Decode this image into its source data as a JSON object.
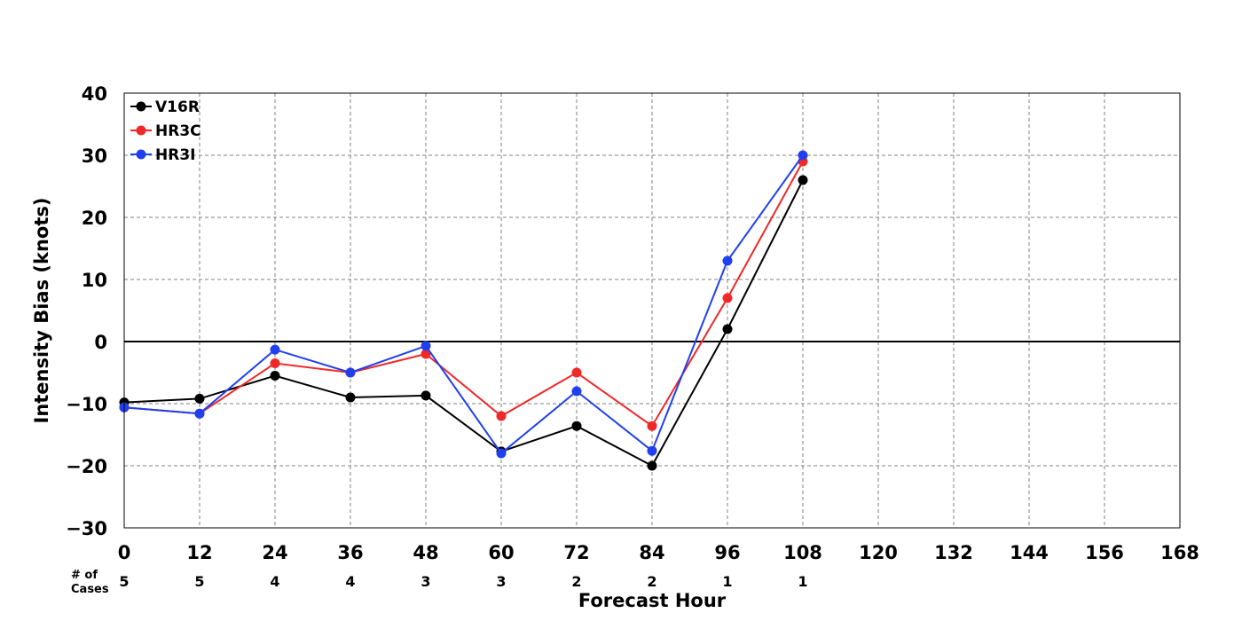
{
  "chart_data": {
    "type": "line",
    "xlabel": "Forecast Hour",
    "ylabel": "Intensity Bias (knots)",
    "xlim": [
      0,
      168
    ],
    "ylim": [
      -30,
      40
    ],
    "xticks": [
      0,
      12,
      24,
      36,
      48,
      60,
      72,
      84,
      96,
      108,
      120,
      132,
      144,
      156,
      168
    ],
    "yticks": [
      -30,
      -20,
      -10,
      0,
      10,
      20,
      30,
      40
    ],
    "grid": true,
    "legend_position": "top-left",
    "cases_label": [
      "# of",
      "Cases"
    ],
    "cases": [
      {
        "x": 0,
        "count": "5"
      },
      {
        "x": 12,
        "count": "5"
      },
      {
        "x": 24,
        "count": "4"
      },
      {
        "x": 36,
        "count": "4"
      },
      {
        "x": 48,
        "count": "3"
      },
      {
        "x": 60,
        "count": "3"
      },
      {
        "x": 72,
        "count": "2"
      },
      {
        "x": 84,
        "count": "2"
      },
      {
        "x": 96,
        "count": "1"
      },
      {
        "x": 108,
        "count": "1"
      }
    ],
    "x": [
      0,
      12,
      24,
      36,
      48,
      60,
      72,
      84,
      96,
      108
    ],
    "series": [
      {
        "name": "V16R",
        "color": "#000000",
        "values": [
          -9.8,
          -9.2,
          -5.5,
          -9.0,
          -8.7,
          -17.7,
          -13.6,
          -20.0,
          2.0,
          26.0
        ]
      },
      {
        "name": "HR3C",
        "color": "#f02828",
        "values": [
          -10.6,
          -11.6,
          -3.5,
          -5.0,
          -2.0,
          -12.0,
          -5.0,
          -13.6,
          7.0,
          29.0
        ]
      },
      {
        "name": "HR3I",
        "color": "#2040f0",
        "values": [
          -10.6,
          -11.6,
          -1.3,
          -5.0,
          -0.7,
          -18.0,
          -8.0,
          -17.6,
          13.0,
          30.0
        ]
      }
    ]
  }
}
